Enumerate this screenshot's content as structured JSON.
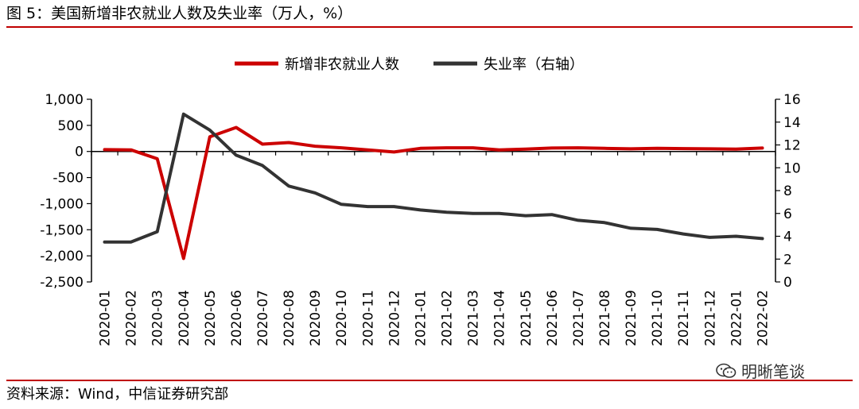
{
  "figure_title": "图 5：美国新增非农就业人数及失业率（万人，%）",
  "source": "资料来源：Wind，中信证券研究部",
  "watermark": "明晰笔谈",
  "watermark_icon": "wechat-icon",
  "colors": {
    "payrolls": "#cc0000",
    "unemployment": "#333333",
    "rule": "#c00000"
  },
  "chart_data": {
    "type": "line",
    "title": "",
    "categories": [
      "2020-01",
      "2020-02",
      "2020-03",
      "2020-04",
      "2020-05",
      "2020-06",
      "2020-07",
      "2020-08",
      "2020-09",
      "2020-10",
      "2020-11",
      "2020-12",
      "2021-01",
      "2021-02",
      "2021-03",
      "2021-04",
      "2021-05",
      "2021-06",
      "2021-07",
      "2021-08",
      "2021-09",
      "2021-10",
      "2021-11",
      "2021-12",
      "2022-01",
      "2022-02"
    ],
    "series": [
      {
        "name": "新增非农就业人数",
        "axis": "left",
        "values": [
          35,
          30,
          -140,
          -2050,
          280,
          460,
          140,
          170,
          100,
          70,
          30,
          -10,
          60,
          70,
          70,
          30,
          45,
          65,
          70,
          60,
          50,
          60,
          55,
          50,
          45,
          65
        ]
      },
      {
        "name": "失业率（右轴）",
        "axis": "right",
        "values": [
          3.5,
          3.5,
          4.4,
          14.7,
          13.3,
          11.1,
          10.2,
          8.4,
          7.8,
          6.8,
          6.6,
          6.6,
          6.3,
          6.1,
          6.0,
          6.0,
          5.8,
          5.9,
          5.4,
          5.2,
          4.7,
          4.6,
          4.2,
          3.9,
          4.0,
          3.8
        ]
      }
    ],
    "y_left": {
      "min": -2500,
      "max": 1000,
      "ticks": [
        1000,
        500,
        0,
        -500,
        -1000,
        -1500,
        -2000,
        -2500
      ],
      "tick_labels": [
        "1,000",
        "500",
        "0",
        "-500",
        "-1,000",
        "-1,500",
        "-2,000",
        "-2,500"
      ]
    },
    "y_right": {
      "min": 0,
      "max": 16,
      "ticks": [
        16,
        14,
        12,
        10,
        8,
        6,
        4,
        2,
        0
      ],
      "tick_labels": [
        "16",
        "14",
        "12",
        "10",
        "8",
        "6",
        "4",
        "2",
        "0"
      ]
    },
    "legend_position": "top-center",
    "grid": false
  }
}
